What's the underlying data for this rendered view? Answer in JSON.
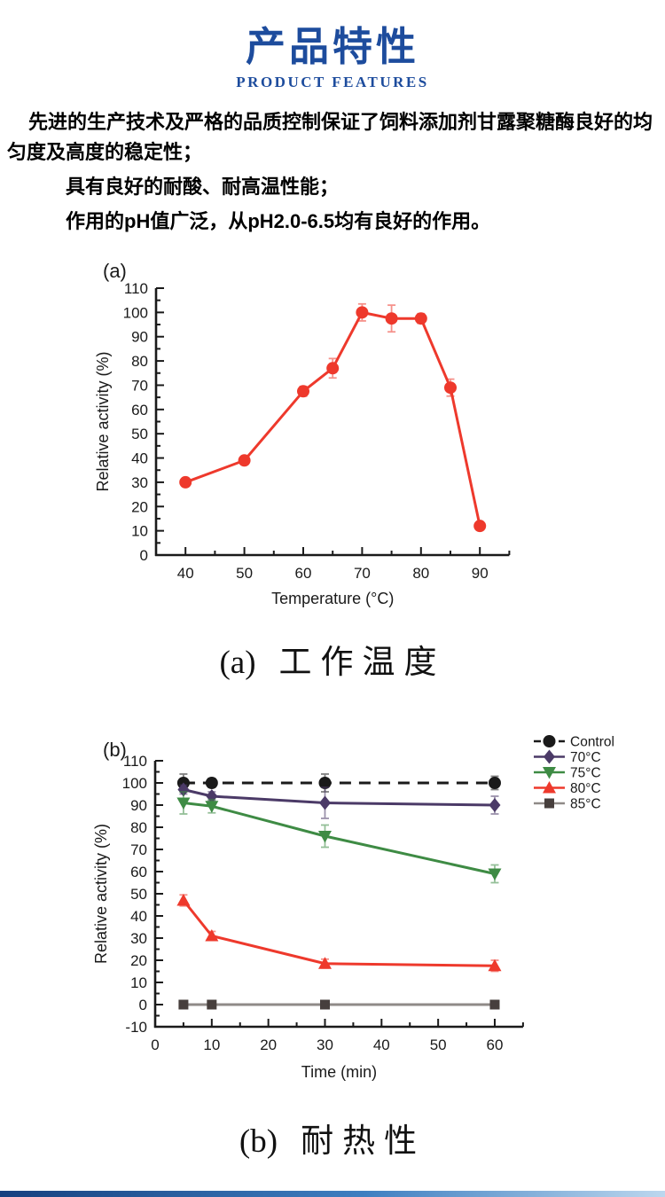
{
  "header": {
    "title": "产品特性",
    "subtitle": "PRODUCT FEATURES",
    "color": "#1d4c9d"
  },
  "intro": {
    "p1": "先进的生产技术及严格的品质控制保证了饲料添加剂甘露聚糖酶良好的均匀度及高度的稳定性；",
    "p2": "具有良好的耐酸、耐高温性能；",
    "p3": "作用的pH值广泛，从pH2.0-6.5均有良好的作用。"
  },
  "chart_data": [
    {
      "id": "temperature-activity",
      "type": "line",
      "panel_label": "(a)",
      "title": "",
      "xlabel": "Temperature (°C)",
      "ylabel": "Relative activity (%)",
      "xlim": [
        35,
        95
      ],
      "ylim": [
        0,
        110
      ],
      "x_major_ticks": [
        40,
        50,
        60,
        70,
        80,
        90
      ],
      "x_minor_step": 5,
      "y_major_step": 10,
      "y_minor_step": 5,
      "grid": false,
      "legend": false,
      "x": [
        40,
        50,
        60,
        65,
        70,
        75,
        80,
        85,
        90
      ],
      "series": [
        {
          "name": "Relative activity",
          "color": "#ee392c",
          "marker": "circle",
          "values": [
            30,
            39,
            67.5,
            77,
            100,
            97.5,
            97.5,
            69,
            12
          ],
          "errors": [
            1.5,
            1.5,
            2,
            4,
            3.5,
            5.5,
            2,
            3.5,
            1.5
          ]
        }
      ],
      "caption_label": "(a)",
      "caption_title": "工作温度"
    },
    {
      "id": "thermostability",
      "type": "line",
      "panel_label": "(b)",
      "title": "",
      "xlabel": "Time (min)",
      "ylabel": "Relative activity (%)",
      "xlim": [
        0,
        65
      ],
      "ylim": [
        -10,
        110
      ],
      "x_major_ticks": [
        0,
        10,
        20,
        30,
        40,
        50,
        60
      ],
      "x_minor_step": 5,
      "y_major_step": 10,
      "y_minor_step": 5,
      "grid": false,
      "legend": true,
      "legend_position": "right-top",
      "x": [
        5,
        10,
        30,
        60
      ],
      "series": [
        {
          "name": "Control",
          "color": "#1a1a1a",
          "marker": "circle",
          "dash": true,
          "values": [
            100,
            100,
            100,
            100
          ],
          "errors": [
            4,
            2,
            4,
            3
          ]
        },
        {
          "name": "70°C",
          "color": "#4b3a67",
          "marker": "diamond",
          "values": [
            97,
            94,
            91,
            90
          ],
          "errors": [
            2,
            2,
            7,
            4
          ]
        },
        {
          "name": "75°C",
          "color": "#3e8b44",
          "marker": "triangle-down",
          "values": [
            91,
            89.5,
            76,
            59
          ],
          "errors": [
            5,
            3,
            5,
            4
          ]
        },
        {
          "name": "80°C",
          "color": "#ee392c",
          "marker": "triangle-up",
          "values": [
            47,
            31,
            18.5,
            17.5
          ],
          "errors": [
            2.5,
            2,
            2,
            2.5
          ]
        },
        {
          "name": "85°C",
          "color": "#8f8a87",
          "marker": "square",
          "marker_color": "#473f3d",
          "values": [
            0,
            0,
            0,
            0
          ],
          "errors": [
            0,
            0,
            0,
            0
          ]
        }
      ],
      "caption_label": "(b)",
      "caption_title": "耐热性"
    }
  ],
  "footer": {
    "bar_colors": [
      "#16407f",
      "#3f7fc1",
      "#bcd7ee"
    ]
  }
}
